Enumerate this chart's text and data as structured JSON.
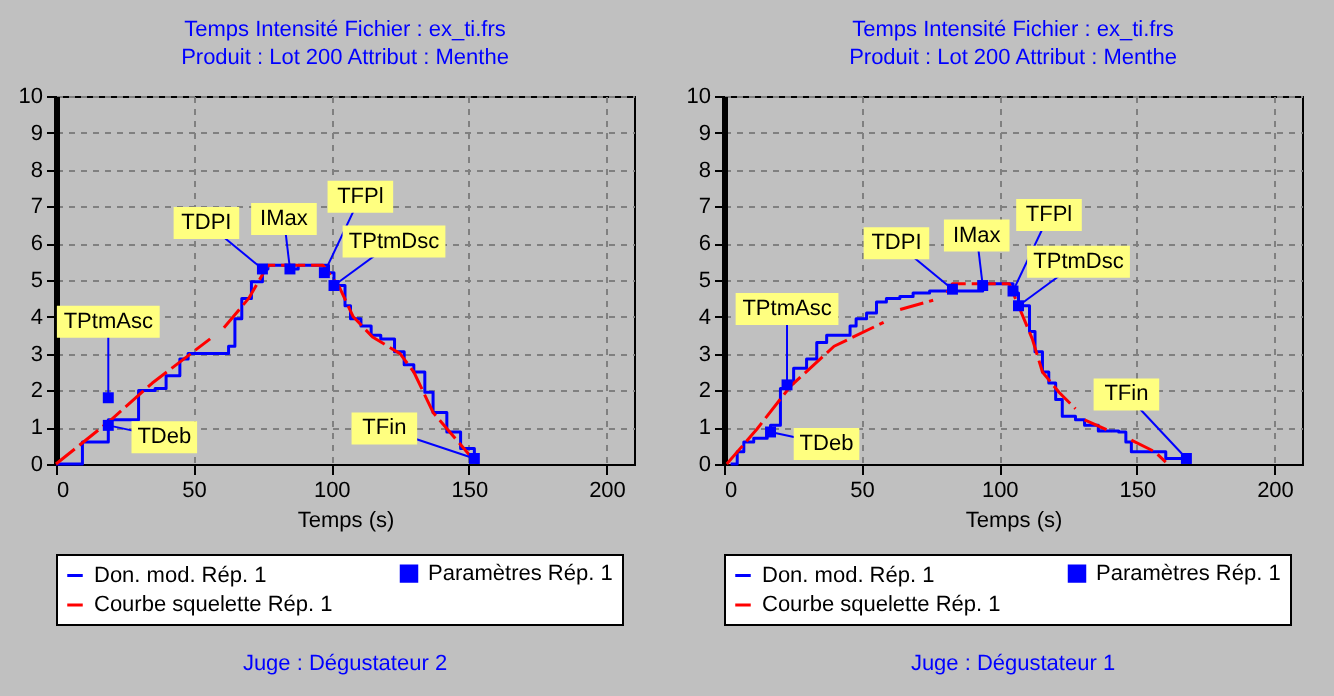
{
  "chart_data": [
    {
      "type": "step",
      "title": "Temps Intensité Fichier : ex_ti.frs",
      "subtitle": "Produit : Lot 200 Attribut : Menthe",
      "xlabel": "Temps (s)",
      "xlim": [
        0,
        210
      ],
      "xticks": [
        0,
        50,
        100,
        150,
        200
      ],
      "ylim": [
        0,
        10
      ],
      "yticks": [
        0,
        1,
        2,
        3,
        4,
        5,
        6,
        7,
        8,
        9,
        10
      ],
      "grid": true,
      "legend": "bottom",
      "series": [
        {
          "name": "Don. mod. Rép. 1",
          "color": "#0000ff",
          "x": [
            0,
            9.6,
            19,
            30,
            36,
            40,
            45,
            48,
            50,
            62.7,
            65,
            67.5,
            71,
            75,
            77,
            84,
            84,
            88,
            88,
            96,
            99,
            101,
            105,
            107,
            110.8,
            114.5,
            118,
            123,
            126.5,
            130,
            134,
            137,
            142,
            147,
            152,
            153
          ],
          "values": [
            0,
            0.6,
            1.2,
            2.0,
            2.05,
            2.4,
            2.85,
            3.0,
            3.0,
            3.2,
            3.95,
            4.5,
            4.95,
            5.3,
            5.4,
            5.4,
            5.3,
            5.3,
            5.4,
            5.4,
            5.2,
            4.85,
            4.3,
            3.95,
            3.75,
            3.5,
            3.4,
            3.05,
            2.7,
            2.5,
            1.95,
            1.4,
            0.87,
            0.42,
            0.15,
            0
          ]
        },
        {
          "name": "Paramètres Rép. 1",
          "type": "scatter",
          "marker": "square",
          "color": "#0000ff",
          "x": [
            19,
            19,
            75,
            85,
            97.5,
            101,
            152
          ],
          "values": [
            1.8,
            1.05,
            5.3,
            5.3,
            5.2,
            4.85,
            0.15
          ]
        },
        {
          "name": "Courbe squelette Rép. 1",
          "type": "line",
          "line_style": "dashed",
          "color": "#ff0000",
          "x": [
            0,
            20,
            35,
            56,
            59,
            61,
            70,
            77,
            97,
            103,
            108,
            115,
            125,
            130,
            137,
            153
          ],
          "values": [
            0,
            1.2,
            2.2,
            3.4,
            null,
            3.7,
            4.5,
            5.4,
            5.4,
            4.8,
            4.0,
            3.45,
            3.0,
            2.5,
            1.4,
            0
          ]
        }
      ],
      "annotations": [
        {
          "text": "TPtmAsc",
          "x": 19,
          "y": 1.8
        },
        {
          "text": "TDeb",
          "x": 19,
          "y": 1.05
        },
        {
          "text": "TDPI",
          "x": 75,
          "y": 5.3
        },
        {
          "text": "IMax",
          "x": 85,
          "y": 5.3
        },
        {
          "text": "TFPl",
          "x": 97.5,
          "y": 5.2
        },
        {
          "text": "TPtmDsc",
          "x": 101,
          "y": 4.85
        },
        {
          "text": "TFin",
          "x": 152,
          "y": 0.15
        },
        "Juge : Dégustateur 2"
      ]
    },
    {
      "type": "step",
      "title": "Temps Intensité Fichier : ex_ti.frs",
      "subtitle": "Produit : Lot 200 Attribut : Menthe",
      "xlabel": "Temps (s)",
      "xlim": [
        0,
        210
      ],
      "xticks": [
        0,
        50,
        100,
        150,
        200
      ],
      "ylim": [
        0,
        10
      ],
      "yticks": [
        0,
        1,
        2,
        3,
        4,
        5,
        6,
        7,
        8,
        9,
        10
      ],
      "grid": true,
      "legend": "bottom",
      "series": [
        {
          "name": "Don. mod. Rép. 1",
          "color": "#0000ff",
          "x": [
            2.4,
            4.8,
            7.2,
            10.8,
            15.7,
            16.9,
            20.5,
            22.9,
            25.3,
            30,
            33.7,
            37.3,
            42,
            45.8,
            48,
            51.8,
            55.4,
            59,
            63.9,
            68.7,
            74.7,
            92.8,
            94,
            103.6,
            105,
            107,
            111,
            113,
            115.7,
            118,
            120.5,
            122.9,
            127.7,
            131,
            136,
            143.4,
            146,
            148,
            158,
            160.5,
            168,
            169
          ],
          "values": [
            0,
            0.33,
            0.6,
            0.7,
            0.87,
            1.05,
            2.05,
            2.2,
            2.6,
            2.85,
            3.3,
            3.5,
            3.5,
            3.75,
            3.95,
            4.1,
            4.4,
            4.5,
            4.55,
            4.65,
            4.7,
            4.7,
            4.9,
            4.9,
            4.65,
            4.3,
            3.6,
            3.05,
            2.5,
            2.2,
            1.75,
            1.3,
            1.2,
            1.05,
            0.9,
            0.87,
            0.6,
            0.33,
            0.33,
            0.15,
            0.15,
            0
          ]
        },
        {
          "name": "Paramètres Rép. 1",
          "type": "scatter",
          "marker": "square",
          "color": "#0000ff",
          "x": [
            22.9,
            16.9,
            83,
            94,
            105,
            107,
            168
          ],
          "values": [
            2.15,
            0.87,
            4.75,
            4.85,
            4.7,
            4.3,
            0.15
          ]
        },
        {
          "name": "Courbe squelette Rép. 1",
          "type": "line",
          "line_style": "dashed",
          "color": "#ff0000",
          "x": [
            1,
            12,
            24,
            40,
            58,
            61,
            64,
            76,
            78,
            81,
            83,
            103.6,
            107,
            112,
            115.7,
            121.7,
            127.7,
            129,
            131,
            141,
            144,
            148,
            156.6,
            160.5
          ],
          "values": [
            0,
            0.95,
            2.1,
            3.2,
            3.85,
            null,
            4.2,
            4.45,
            null,
            4.65,
            4.9,
            4.9,
            4.3,
            3.4,
            2.5,
            1.95,
            1.5,
            null,
            1.2,
            0.87,
            null,
            0.65,
            0.33,
            0.05
          ]
        }
      ],
      "annotations": [
        {
          "text": "TPtmAsc",
          "x": 22.9,
          "y": 2.15
        },
        {
          "text": "TDeb",
          "x": 16.9,
          "y": 0.87
        },
        {
          "text": "TDPI",
          "x": 83,
          "y": 4.75
        },
        {
          "text": "IMax",
          "x": 94,
          "y": 4.85
        },
        {
          "text": "TFPl",
          "x": 105,
          "y": 4.7
        },
        {
          "text": "TPtmDsc",
          "x": 107,
          "y": 4.3
        },
        {
          "text": "TFin",
          "x": 168,
          "y": 0.15
        },
        "Juge : Dégustateur 1"
      ]
    }
  ]
}
